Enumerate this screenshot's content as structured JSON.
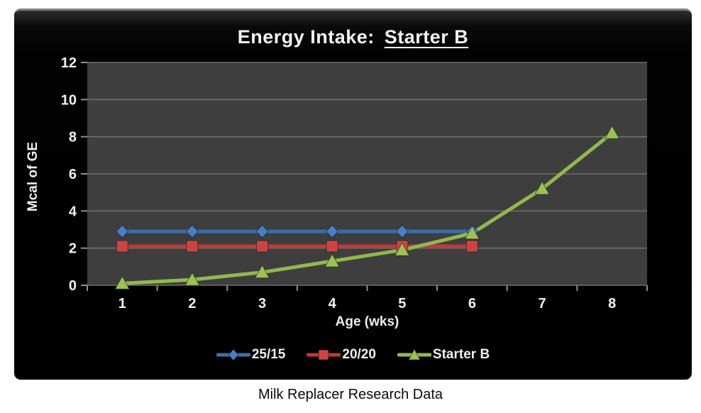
{
  "caption": "Milk Replacer Research Data",
  "chart_data": {
    "type": "line",
    "title": "Energy Intake: Starter B",
    "title_prefix": "Energy Intake:",
    "title_emphasis": "Starter B",
    "xlabel": "Age (wks)",
    "ylabel": "Mcal of GE",
    "x": [
      1,
      2,
      3,
      4,
      5,
      6,
      7,
      8
    ],
    "ylim": [
      0,
      12
    ],
    "yticks": [
      0,
      2,
      4,
      6,
      8,
      10,
      12
    ],
    "grid": true,
    "legend_position": "bottom",
    "series": [
      {
        "name": "25/15",
        "marker": "diamond",
        "color": "#4a7ec4",
        "line_color": "#3f6ea9",
        "values": [
          2.9,
          2.9,
          2.9,
          2.9,
          2.9,
          2.9,
          null,
          null
        ]
      },
      {
        "name": "20/20",
        "marker": "square",
        "color": "#cc4442",
        "line_color": "#bf3a38",
        "values": [
          2.1,
          2.1,
          2.1,
          2.1,
          2.1,
          2.1,
          null,
          null
        ]
      },
      {
        "name": "Starter B",
        "marker": "triangle",
        "color": "#9cc155",
        "line_color": "#93b84e",
        "values": [
          0.1,
          0.3,
          0.7,
          1.3,
          1.9,
          2.8,
          5.2,
          8.2
        ]
      }
    ],
    "colors": {
      "plot_bg": "#3e3e3e",
      "grid": "#6f6f6f",
      "tick": "#909090",
      "text": "#f0f0f0",
      "box_bg": "#020202",
      "box_top_bevel": "#828282",
      "page_bg": "#ffffff",
      "caption_text": "#0a0a0a"
    }
  }
}
